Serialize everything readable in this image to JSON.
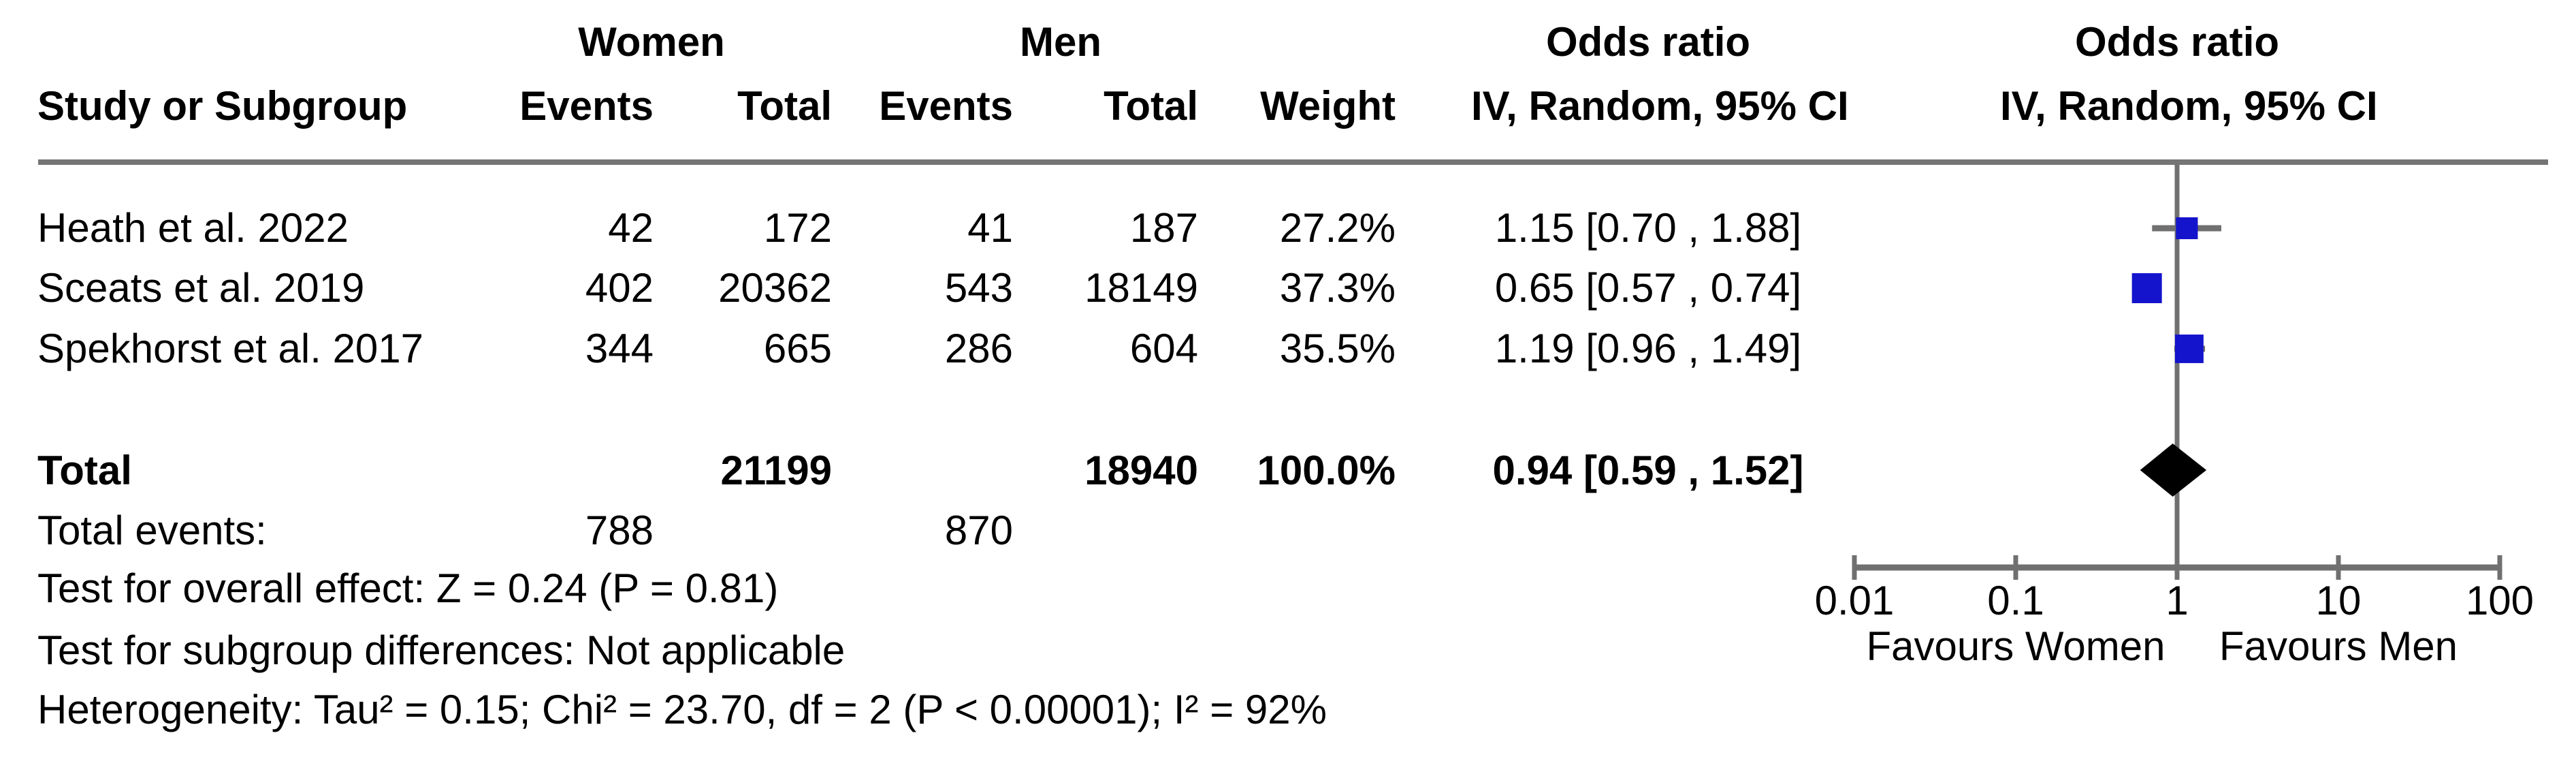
{
  "table": {
    "header": {
      "study": "Study or Subgroup",
      "group_women": "Women",
      "group_men": "Men",
      "events": "Events",
      "total": "Total",
      "weight": "Weight",
      "or_line1": "Odds ratio",
      "or_line2": "IV, Random, 95% CI"
    },
    "rows": [
      {
        "name": "Heath et al. 2022",
        "women_events": "42",
        "women_total": "172",
        "men_events": "41",
        "men_total": "187",
        "weight": "27.2%",
        "or_ci": "1.15 [0.70 , 1.88]"
      },
      {
        "name": "Sceats et al. 2019",
        "women_events": "402",
        "women_total": "20362",
        "men_events": "543",
        "men_total": "18149",
        "weight": "37.3%",
        "or_ci": "0.65 [0.57 , 0.74]"
      },
      {
        "name": "Spekhorst et al. 2017",
        "women_events": "344",
        "women_total": "665",
        "men_events": "286",
        "men_total": "604",
        "weight": "35.5%",
        "or_ci": "1.19 [0.96 , 1.49]"
      }
    ],
    "total_row": {
      "label": "Total",
      "women_total": "21199",
      "men_total": "18940",
      "weight": "100.0%",
      "or_ci": "0.94 [0.59 , 1.52]"
    },
    "total_events": {
      "label": "Total events:",
      "women": "788",
      "men": "870"
    },
    "footer": {
      "overall": "Test for overall effect: Z = 0.24 (P = 0.81)",
      "subgroup": "Test for subgroup differences: Not applicable",
      "heterogeneity": "Heterogeneity: Tau² = 0.15; Chi² = 23.70, df = 2 (P < 0.00001); I² = 92%"
    }
  },
  "chart_data": {
    "type": "scatter",
    "variant": "forest-plot",
    "title": "Odds ratio",
    "model": "IV, Random, 95% CI",
    "x_scale": "log",
    "x_ticks": [
      0.01,
      0.1,
      1,
      10,
      100
    ],
    "x_tick_labels": [
      "0.01",
      "0.1",
      "1",
      "10",
      "100"
    ],
    "null_line": 1,
    "favours_left": "Favours Women",
    "favours_right": "Favours Men",
    "studies": [
      {
        "name": "Heath et al. 2022",
        "or": 1.15,
        "ci_low": 0.7,
        "ci_high": 1.88,
        "weight_pct": 27.2
      },
      {
        "name": "Sceats et al. 2019",
        "or": 0.65,
        "ci_low": 0.57,
        "ci_high": 0.74,
        "weight_pct": 37.3
      },
      {
        "name": "Spekhorst et al. 2017",
        "or": 1.19,
        "ci_low": 0.96,
        "ci_high": 1.49,
        "weight_pct": 35.5
      }
    ],
    "total": {
      "or": 0.94,
      "ci_low": 0.59,
      "ci_high": 1.52,
      "weight_pct": 100.0
    },
    "colors": {
      "marker": "#1414cc",
      "diamond": "#000000",
      "lines": "#707070"
    }
  }
}
